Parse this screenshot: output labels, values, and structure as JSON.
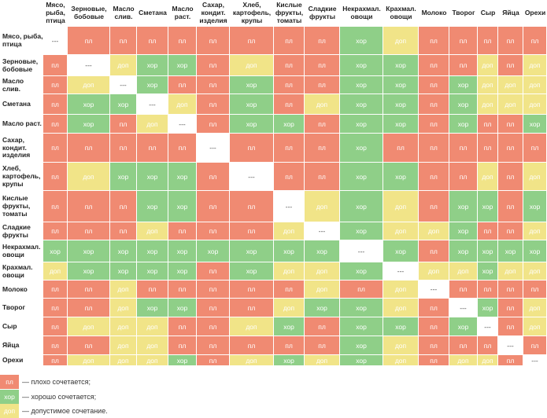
{
  "columns": [
    "Мясо, рыба, птица",
    "Зерновые, бобовые",
    "Масло слив.",
    "Сметана",
    "Масло раст.",
    "Сахар, кондит. изделия",
    "Хлеб, картофель, крупы",
    "Кислые фрукты, томаты",
    "Сладкие фрукты",
    "Некрахмал. овощи",
    "Крахмал. овощи",
    "Молоко",
    "Творог",
    "Сыр",
    "Яйца",
    "Орехи"
  ],
  "rows": [
    "Мясо, рыба, птица",
    "Зерновые, бобовые",
    "Масло слив.",
    "Сметана",
    "Масло раст.",
    "Сахар, кондит. изделия",
    "Хлеб, картофель, крупы",
    "Кислые фрукты, томаты",
    "Сладкие фрукты",
    "Некрахмал. овощи",
    "Крахмал. овощи",
    "Молоко",
    "Творог",
    "Сыр",
    "Яйца",
    "Орехи"
  ],
  "labels": {
    "pl": "пл",
    "hor": "хор",
    "dop": "доп",
    "self": "---"
  },
  "colors": {
    "pl": "#f08a72",
    "hor": "#8fcf88",
    "dop": "#f1e488"
  },
  "matrix": [
    [
      "self",
      "pl",
      "pl",
      "pl",
      "pl",
      "pl",
      "pl",
      "pl",
      "pl",
      "hor",
      "dop",
      "pl",
      "pl",
      "pl",
      "pl",
      "pl"
    ],
    [
      "pl",
      "self",
      "dop",
      "hor",
      "hor",
      "pl",
      "dop",
      "pl",
      "pl",
      "hor",
      "hor",
      "pl",
      "pl",
      "dop",
      "pl",
      "dop"
    ],
    [
      "pl",
      "dop",
      "self",
      "hor",
      "pl",
      "pl",
      "hor",
      "pl",
      "pl",
      "hor",
      "hor",
      "pl",
      "hor",
      "dop",
      "dop",
      "dop"
    ],
    [
      "pl",
      "hor",
      "hor",
      "self",
      "dop",
      "pl",
      "hor",
      "pl",
      "dop",
      "hor",
      "hor",
      "pl",
      "hor",
      "dop",
      "dop",
      "dop"
    ],
    [
      "pl",
      "hor",
      "pl",
      "dop",
      "self",
      "pl",
      "hor",
      "hor",
      "pl",
      "hor",
      "hor",
      "pl",
      "hor",
      "pl",
      "pl",
      "hor"
    ],
    [
      "pl",
      "pl",
      "pl",
      "pl",
      "pl",
      "self",
      "pl",
      "pl",
      "pl",
      "hor",
      "pl",
      "pl",
      "pl",
      "pl",
      "pl",
      "pl"
    ],
    [
      "pl",
      "dop",
      "hor",
      "hor",
      "hor",
      "pl",
      "self",
      "pl",
      "pl",
      "hor",
      "hor",
      "pl",
      "pl",
      "dop",
      "pl",
      "dop"
    ],
    [
      "pl",
      "pl",
      "pl",
      "hor",
      "hor",
      "pl",
      "pl",
      "self",
      "dop",
      "hor",
      "dop",
      "pl",
      "hor",
      "hor",
      "pl",
      "hor"
    ],
    [
      "pl",
      "pl",
      "pl",
      "dop",
      "pl",
      "pl",
      "pl",
      "dop",
      "self",
      "hor",
      "dop",
      "dop",
      "hor",
      "pl",
      "pl",
      "dop"
    ],
    [
      "hor",
      "hor",
      "hor",
      "hor",
      "hor",
      "hor",
      "hor",
      "hor",
      "hor",
      "self",
      "hor",
      "pl",
      "hor",
      "hor",
      "hor",
      "hor"
    ],
    [
      "dop",
      "hor",
      "hor",
      "hor",
      "hor",
      "pl",
      "hor",
      "dop",
      "dop",
      "hor",
      "self",
      "dop",
      "dop",
      "hor",
      "dop",
      "dop"
    ],
    [
      "pl",
      "pl",
      "dop",
      "pl",
      "pl",
      "pl",
      "pl",
      "pl",
      "dop",
      "pl",
      "dop",
      "self",
      "pl",
      "pl",
      "pl",
      "pl"
    ],
    [
      "pl",
      "pl",
      "dop",
      "hor",
      "hor",
      "pl",
      "pl",
      "dop",
      "hor",
      "hor",
      "dop",
      "pl",
      "self",
      "hor",
      "pl",
      "dop"
    ],
    [
      "pl",
      "dop",
      "dop",
      "dop",
      "pl",
      "pl",
      "dop",
      "hor",
      "pl",
      "hor",
      "hor",
      "pl",
      "hor",
      "self",
      "pl",
      "dop"
    ],
    [
      "pl",
      "pl",
      "dop",
      "dop",
      "pl",
      "pl",
      "pl",
      "pl",
      "pl",
      "hor",
      "dop",
      "pl",
      "pl",
      "pl",
      "self",
      "pl"
    ],
    [
      "pl",
      "dop",
      "dop",
      "dop",
      "hor",
      "pl",
      "dop",
      "hor",
      "dop",
      "hor",
      "dop",
      "pl",
      "dop",
      "dop",
      "pl",
      "self"
    ]
  ],
  "legend": [
    {
      "key": "pl",
      "label": "пл",
      "text": "— плохо сочетается;"
    },
    {
      "key": "hor",
      "label": "хор",
      "text": "— хорошо сочетается;"
    },
    {
      "key": "dop",
      "label": "доп",
      "text": "— допустимое сочетание."
    }
  ]
}
